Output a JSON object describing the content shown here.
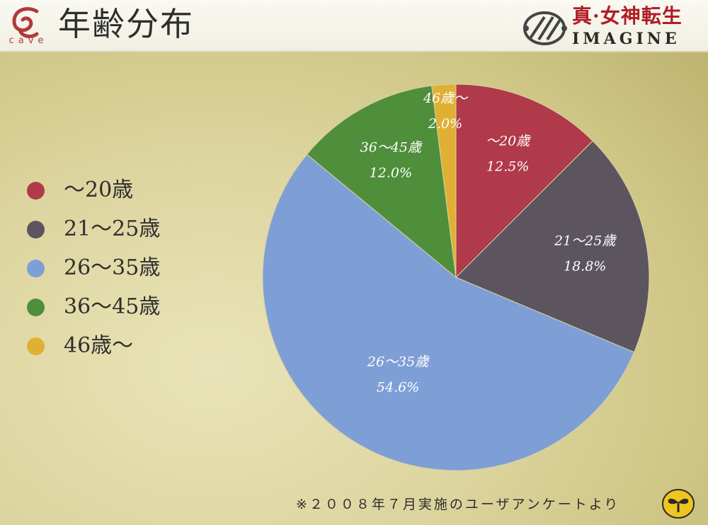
{
  "header": {
    "title": "年齢分布",
    "company_logo_text": "cave",
    "brand_jp": "真·女神転生",
    "brand_en": "IMAGINE"
  },
  "footnote": "※２００８年７月実施のユーザアンケートより",
  "chart_data": {
    "type": "pie",
    "title": "年齢分布",
    "categories": [
      "～20歳",
      "21～25歳",
      "26～35歳",
      "36～45歳",
      "46歳～"
    ],
    "values": [
      12.5,
      18.8,
      54.6,
      12.0,
      2.0
    ],
    "value_labels": [
      "12.5%",
      "18.8%",
      "54.6%",
      "12.0%",
      "2.0%"
    ],
    "colors": [
      "#b0394a",
      "#5c5560",
      "#7e9fd6",
      "#4f8e3b",
      "#e0b034"
    ],
    "start": "12 o'clock",
    "direction": "clockwise",
    "legend_position": "left"
  }
}
